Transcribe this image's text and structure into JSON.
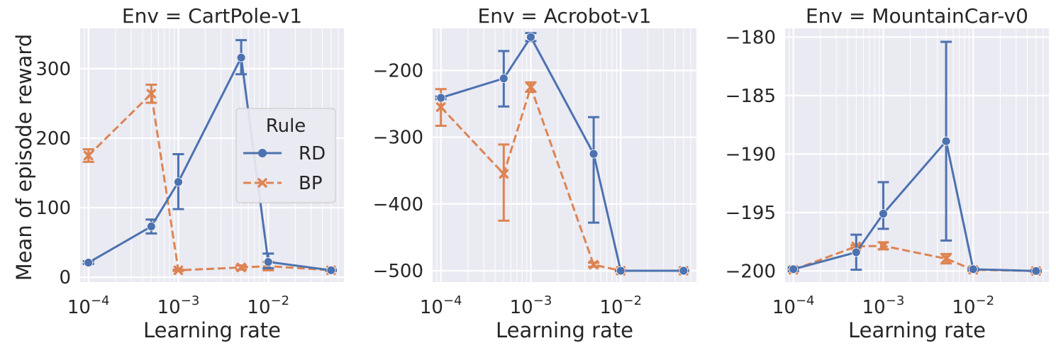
{
  "ylabel": "Mean of episode reward",
  "xlabel": "Learning rate",
  "legend": {
    "title": "Rule",
    "position": "upper-right of first panel",
    "entries": [
      {
        "name": "RD",
        "color": "#4c72b0",
        "marker": "circle",
        "line": "solid"
      },
      {
        "name": "BP",
        "color": "#dd8452",
        "marker": "x",
        "line": "dashed"
      }
    ]
  },
  "x_ticks": [
    {
      "value": 0.0001,
      "base": "10",
      "exp": "−4"
    },
    {
      "value": 0.001,
      "base": "10",
      "exp": "−3"
    },
    {
      "value": 0.01,
      "base": "10",
      "exp": "−2"
    }
  ],
  "chart_data": [
    {
      "type": "line",
      "title": "Env = CartPole-v1",
      "x_scale": "log",
      "x": [
        0.0001,
        0.0005,
        0.001,
        0.005,
        0.01,
        0.05
      ],
      "xlim": [
        7.94e-05,
        0.0708
      ],
      "ylim": [
        -7,
        358
      ],
      "yticks": [
        0,
        100,
        200,
        300
      ],
      "ytick_labels": [
        "0",
        "100",
        "200",
        "300"
      ],
      "grid": true,
      "series": [
        {
          "name": "RD",
          "values": [
            21,
            73,
            137,
            316,
            22,
            10
          ],
          "err_low": [
            19,
            63,
            98,
            292,
            13,
            9
          ],
          "err_high": [
            23,
            83,
            177,
            341,
            34,
            11
          ]
        },
        {
          "name": "BP",
          "values": [
            175,
            264,
            10,
            14,
            16,
            10
          ],
          "err_low": [
            166,
            251,
            9,
            11,
            10,
            9
          ],
          "err_high": [
            184,
            277,
            11,
            17,
            22,
            11
          ]
        }
      ]
    },
    {
      "type": "line",
      "title": "Env = Acrobot-v1",
      "x_scale": "log",
      "x": [
        0.0001,
        0.0005,
        0.001,
        0.005,
        0.01,
        0.05
      ],
      "xlim": [
        7.94e-05,
        0.0708
      ],
      "ylim": [
        -517,
        -137
      ],
      "yticks": [
        -500,
        -400,
        -300,
        -200
      ],
      "ytick_labels": [
        "−500",
        "−400",
        "−300",
        "−200"
      ],
      "grid": true,
      "series": [
        {
          "name": "RD",
          "values": [
            -241,
            -212,
            -150,
            -325,
            -500,
            -500
          ],
          "err_low": [
            -243,
            -254,
            -156,
            -428,
            -500,
            -500
          ],
          "err_high": [
            -239,
            -171,
            -144,
            -270,
            -500,
            -500
          ]
        },
        {
          "name": "BP",
          "values": [
            -255,
            -355,
            -225,
            -491,
            -500,
            -500
          ],
          "err_low": [
            -283,
            -425,
            -232,
            -494,
            -501,
            -501
          ],
          "err_high": [
            -228,
            -311,
            -218,
            -488,
            -499,
            -499
          ]
        }
      ]
    },
    {
      "type": "line",
      "title": "Env = MountainCar-v0",
      "x_scale": "log",
      "x": [
        0.0001,
        0.0005,
        0.001,
        0.005,
        0.01,
        0.05
      ],
      "xlim": [
        7.94e-05,
        0.0708
      ],
      "ylim": [
        -200.95,
        -179.25
      ],
      "yticks": [
        -200,
        -195,
        -190,
        -185,
        -180
      ],
      "ytick_labels": [
        "−200",
        "−195",
        "−190",
        "−185",
        "−180"
      ],
      "grid": true,
      "series": [
        {
          "name": "RD",
          "values": [
            -199.85,
            -198.4,
            -195.1,
            -188.9,
            -199.85,
            -200
          ],
          "err_low": [
            -200,
            -199.9,
            -196.4,
            -197.4,
            -199.95,
            -200.05
          ],
          "err_high": [
            -199.7,
            -196.9,
            -192.4,
            -180.4,
            -199.75,
            -199.95
          ]
        },
        {
          "name": "BP",
          "values": [
            -199.9,
            -197.9,
            -197.85,
            -198.95,
            -199.9,
            -200
          ],
          "err_low": [
            -200,
            -198,
            -198.15,
            -199.35,
            -200,
            -200.1
          ],
          "err_high": [
            -199.8,
            -197.8,
            -197.55,
            -198.55,
            -199.8,
            -199.9
          ]
        }
      ]
    }
  ]
}
